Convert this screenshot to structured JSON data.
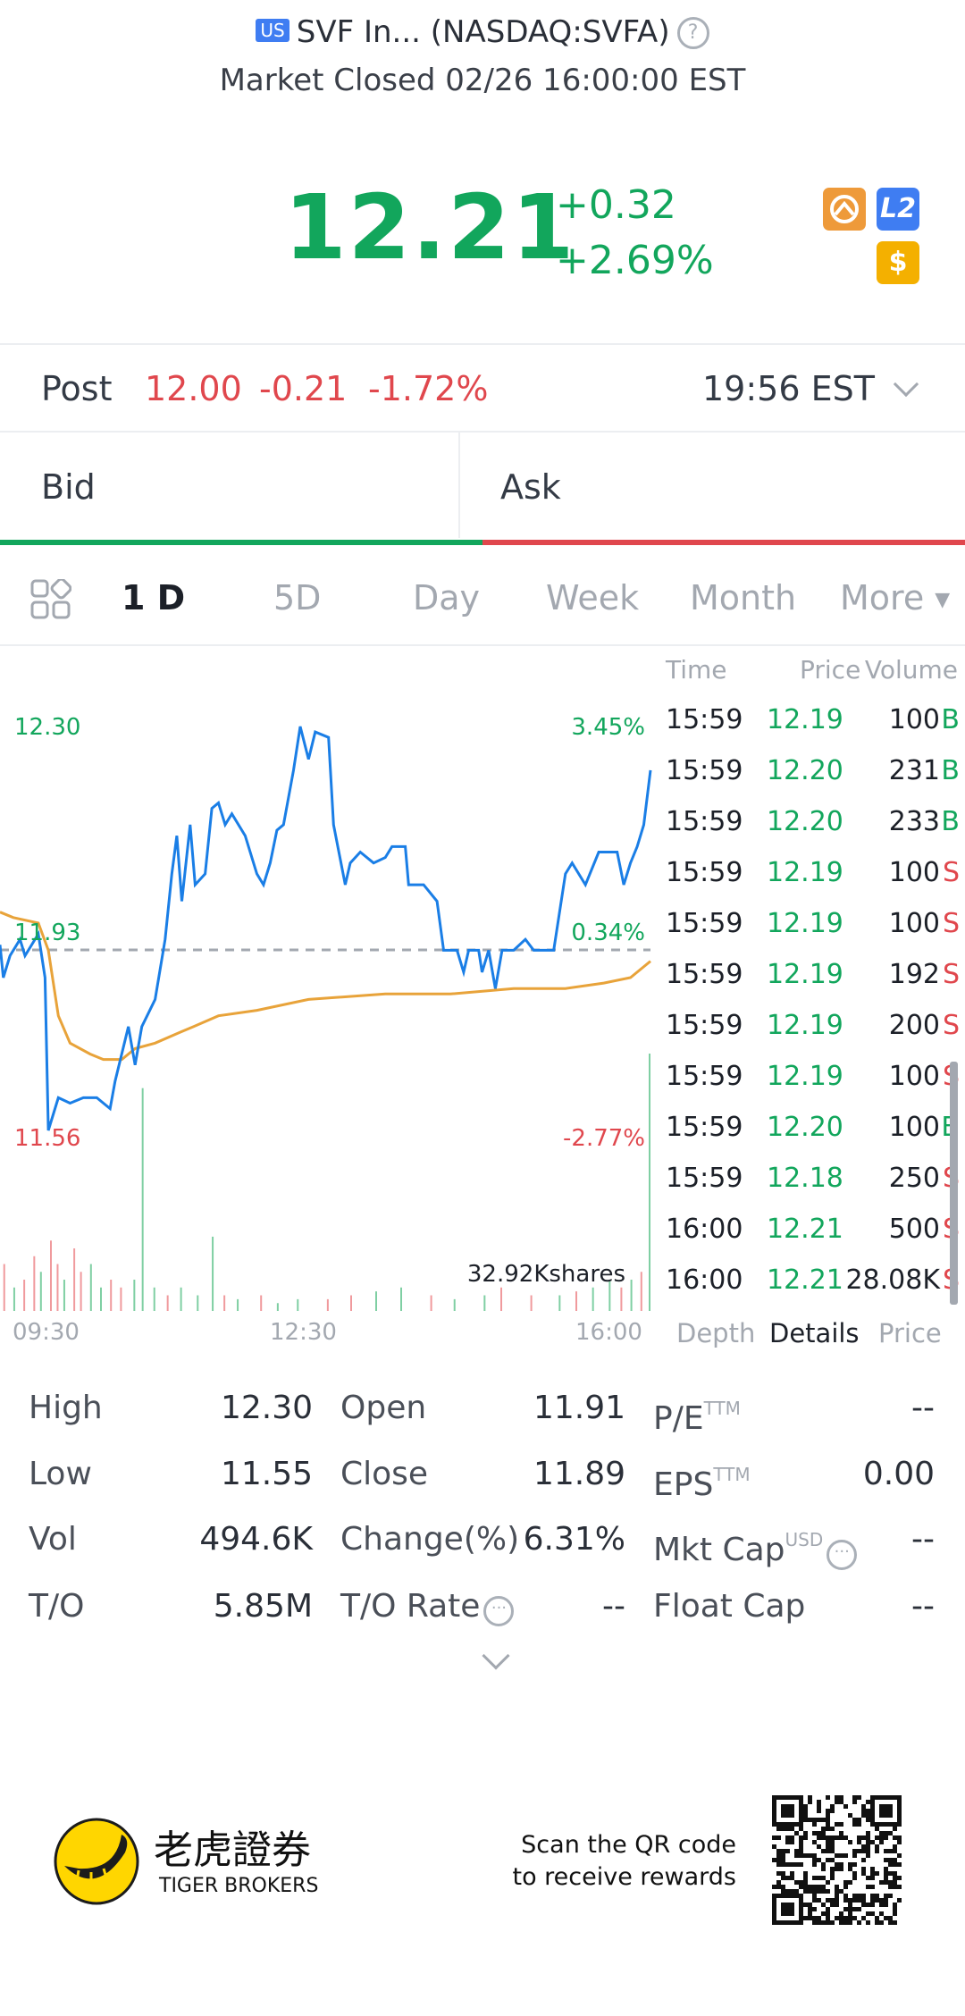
{
  "header": {
    "market_badge": "US",
    "title": "SVF In... (NASDAQ:SVFA)",
    "status": "Market Closed 02/26 16:00:00 EST"
  },
  "quote": {
    "price": "12.21",
    "change": "+0.32",
    "change_pct": "+2.69%",
    "badges": [
      "options-icon",
      "L2",
      "$"
    ]
  },
  "post": {
    "label": "Post",
    "price": "12.00",
    "change": "-0.21",
    "change_pct": "-1.72%",
    "time": "19:56 EST"
  },
  "bidask": {
    "bid": "Bid",
    "ask": "Ask",
    "bid_ratio": 0.5
  },
  "tabs": [
    {
      "label": "1 D",
      "active": true
    },
    {
      "label": "5D"
    },
    {
      "label": "Day"
    },
    {
      "label": "Week"
    },
    {
      "label": "Month"
    },
    {
      "label": "More"
    }
  ],
  "chart_data": {
    "type": "line",
    "x_labels": [
      "09:30",
      "12:30",
      "16:00"
    ],
    "price_labels": {
      "high": "12.30",
      "mid": "11.93",
      "low": "11.56"
    },
    "pct_labels": {
      "high": "3.45%",
      "mid": "0.34%",
      "low": "-2.77%"
    },
    "ylim": [
      11.56,
      12.3
    ],
    "prev_close": 11.89,
    "volume_label": "32.92Kshares",
    "volume_max": 32.92,
    "series": [
      {
        "name": "price",
        "color": "#1a7ee6",
        "points": [
          [
            0,
            11.9
          ],
          [
            2,
            11.84
          ],
          [
            6,
            11.88
          ],
          [
            12,
            11.91
          ],
          [
            15,
            11.88
          ],
          [
            23,
            11.92
          ],
          [
            27,
            11.84
          ],
          [
            29,
            11.56
          ],
          [
            35,
            11.62
          ],
          [
            42,
            11.61
          ],
          [
            50,
            11.62
          ],
          [
            58,
            11.62
          ],
          [
            66,
            11.6
          ],
          [
            69,
            11.65
          ],
          [
            77,
            11.75
          ],
          [
            81,
            11.68
          ],
          [
            85,
            11.75
          ],
          [
            93,
            11.8
          ],
          [
            99,
            11.91
          ],
          [
            103,
            12.03
          ],
          [
            106,
            12.1
          ],
          [
            109,
            11.98
          ],
          [
            114,
            12.12
          ],
          [
            117,
            12.01
          ],
          [
            123,
            12.03
          ],
          [
            127,
            12.15
          ],
          [
            131,
            12.16
          ],
          [
            135,
            12.12
          ],
          [
            139,
            12.14
          ],
          [
            147,
            12.1
          ],
          [
            154,
            12.03
          ],
          [
            158,
            12.01
          ],
          [
            162,
            12.05
          ],
          [
            166,
            12.11
          ],
          [
            170,
            12.12
          ],
          [
            176,
            12.22
          ],
          [
            180,
            12.3
          ],
          [
            185,
            12.24
          ],
          [
            189,
            12.29
          ],
          [
            197,
            12.28
          ],
          [
            200,
            12.12
          ],
          [
            207,
            12.01
          ],
          [
            210,
            12.05
          ],
          [
            216,
            12.07
          ],
          [
            224,
            12.05
          ],
          [
            231,
            12.06
          ],
          [
            235,
            12.08
          ],
          [
            243,
            12.08
          ],
          [
            245,
            12.01
          ],
          [
            254,
            12.01
          ],
          [
            262,
            11.98
          ],
          [
            266,
            11.89
          ],
          [
            274,
            11.89
          ],
          [
            278,
            11.85
          ],
          [
            281,
            11.89
          ],
          [
            287,
            11.89
          ],
          [
            289,
            11.85
          ],
          [
            293,
            11.89
          ],
          [
            297,
            11.82
          ],
          [
            301,
            11.89
          ],
          [
            308,
            11.89
          ],
          [
            315,
            11.91
          ],
          [
            320,
            11.89
          ],
          [
            332,
            11.89
          ],
          [
            339,
            12.03
          ],
          [
            343,
            12.05
          ],
          [
            351,
            12.01
          ],
          [
            359,
            12.07
          ],
          [
            370,
            12.07
          ],
          [
            374,
            12.01
          ],
          [
            378,
            12.05
          ],
          [
            382,
            12.08
          ],
          [
            386,
            12.12
          ],
          [
            390,
            12.22
          ]
        ]
      },
      {
        "name": "average",
        "color": "#e8a33a",
        "points": [
          [
            0,
            11.96
          ],
          [
            8,
            11.95
          ],
          [
            23,
            11.94
          ],
          [
            29,
            11.89
          ],
          [
            35,
            11.77
          ],
          [
            42,
            11.72
          ],
          [
            54,
            11.7
          ],
          [
            62,
            11.69
          ],
          [
            73,
            11.69
          ],
          [
            81,
            11.71
          ],
          [
            93,
            11.72
          ],
          [
            108,
            11.74
          ],
          [
            116,
            11.75
          ],
          [
            131,
            11.77
          ],
          [
            154,
            11.78
          ],
          [
            185,
            11.8
          ],
          [
            231,
            11.81
          ],
          [
            270,
            11.81
          ],
          [
            308,
            11.82
          ],
          [
            339,
            11.82
          ],
          [
            362,
            11.83
          ],
          [
            378,
            11.84
          ],
          [
            390,
            11.87
          ]
        ]
      }
    ],
    "volume": [
      [
        2,
        6,
        "r"
      ],
      [
        8,
        3,
        "g"
      ],
      [
        14,
        4,
        "r"
      ],
      [
        20,
        7,
        "r"
      ],
      [
        24,
        5,
        "g"
      ],
      [
        30,
        9,
        "r"
      ],
      [
        34,
        6,
        "r"
      ],
      [
        38,
        4,
        "g"
      ],
      [
        44,
        8,
        "r"
      ],
      [
        48,
        5,
        "r"
      ],
      [
        54,
        6,
        "g"
      ],
      [
        60,
        3,
        "g"
      ],
      [
        66,
        4,
        "r"
      ],
      [
        72,
        3,
        "r"
      ],
      [
        80,
        4,
        "g"
      ],
      [
        85,
        28.5,
        "g"
      ],
      [
        92,
        3,
        "g"
      ],
      [
        100,
        2,
        "r"
      ],
      [
        108,
        3,
        "g"
      ],
      [
        118,
        2,
        "g"
      ],
      [
        127,
        9.5,
        "g"
      ],
      [
        134,
        2,
        "r"
      ],
      [
        142,
        1.5,
        "g"
      ],
      [
        156,
        2,
        "r"
      ],
      [
        166,
        1,
        "g"
      ],
      [
        178,
        1.5,
        "g"
      ],
      [
        196,
        1.5,
        "r"
      ],
      [
        210,
        2,
        "r"
      ],
      [
        225,
        2.5,
        "g"
      ],
      [
        240,
        3,
        "g"
      ],
      [
        258,
        2,
        "r"
      ],
      [
        272,
        1.5,
        "g"
      ],
      [
        290,
        2,
        "g"
      ],
      [
        300,
        3,
        "r"
      ],
      [
        318,
        2,
        "r"
      ],
      [
        335,
        2,
        "g"
      ],
      [
        345,
        2.5,
        "r"
      ],
      [
        355,
        3,
        "g"
      ],
      [
        365,
        4,
        "g"
      ],
      [
        372,
        3,
        "r"
      ],
      [
        378,
        4,
        "g"
      ],
      [
        384,
        5,
        "r"
      ],
      [
        389,
        32.92,
        "g"
      ]
    ]
  },
  "ticks": {
    "headers": {
      "time": "Time",
      "price": "Price",
      "volume": "Volume"
    },
    "rows": [
      {
        "time": "15:59",
        "price": "12.19",
        "volume": "100",
        "side": "B"
      },
      {
        "time": "15:59",
        "price": "12.20",
        "volume": "231",
        "side": "B"
      },
      {
        "time": "15:59",
        "price": "12.20",
        "volume": "233",
        "side": "B"
      },
      {
        "time": "15:59",
        "price": "12.19",
        "volume": "100",
        "side": "S"
      },
      {
        "time": "15:59",
        "price": "12.19",
        "volume": "100",
        "side": "S"
      },
      {
        "time": "15:59",
        "price": "12.19",
        "volume": "192",
        "side": "S"
      },
      {
        "time": "15:59",
        "price": "12.19",
        "volume": "200",
        "side": "S"
      },
      {
        "time": "15:59",
        "price": "12.19",
        "volume": "100",
        "side": "S"
      },
      {
        "time": "15:59",
        "price": "12.20",
        "volume": "100",
        "side": "B"
      },
      {
        "time": "15:59",
        "price": "12.18",
        "volume": "250",
        "side": "S"
      },
      {
        "time": "16:00",
        "price": "12.21",
        "volume": "500",
        "side": "S"
      },
      {
        "time": "16:00",
        "price": "12.21",
        "volume": "28.08K",
        "side": "S"
      }
    ],
    "tabs": [
      "Depth",
      "Details",
      "Price"
    ]
  },
  "stats": [
    [
      {
        "label": "High",
        "value": "12.30"
      },
      {
        "label": "Open",
        "value": "11.91"
      },
      {
        "label": "P/E",
        "sup": "TTM",
        "value": "--"
      }
    ],
    [
      {
        "label": "Low",
        "value": "11.55"
      },
      {
        "label": "Close",
        "value": "11.89"
      },
      {
        "label": "EPS",
        "sup": "TTM",
        "value": "0.00"
      }
    ],
    [
      {
        "label": "Vol",
        "value": "494.6K"
      },
      {
        "label": "Change(%)",
        "value": "6.31%"
      },
      {
        "label": "Mkt Cap",
        "sup": "USD",
        "value": "--"
      }
    ],
    [
      {
        "label": "T/O",
        "value": "5.85M"
      },
      {
        "label": "T/O Rate",
        "value": "--"
      },
      {
        "label": "Float Cap",
        "value": "--"
      }
    ]
  ],
  "footer": {
    "brand_cn": "老虎證券",
    "brand_en": "TIGER BROKERS",
    "scan_line1": "Scan the QR code",
    "scan_line2": "to receive rewards"
  },
  "colors": {
    "up": "#12a65c",
    "down": "#e0474d",
    "price_line": "#1a7ee6",
    "avg_line": "#e8a33a"
  }
}
